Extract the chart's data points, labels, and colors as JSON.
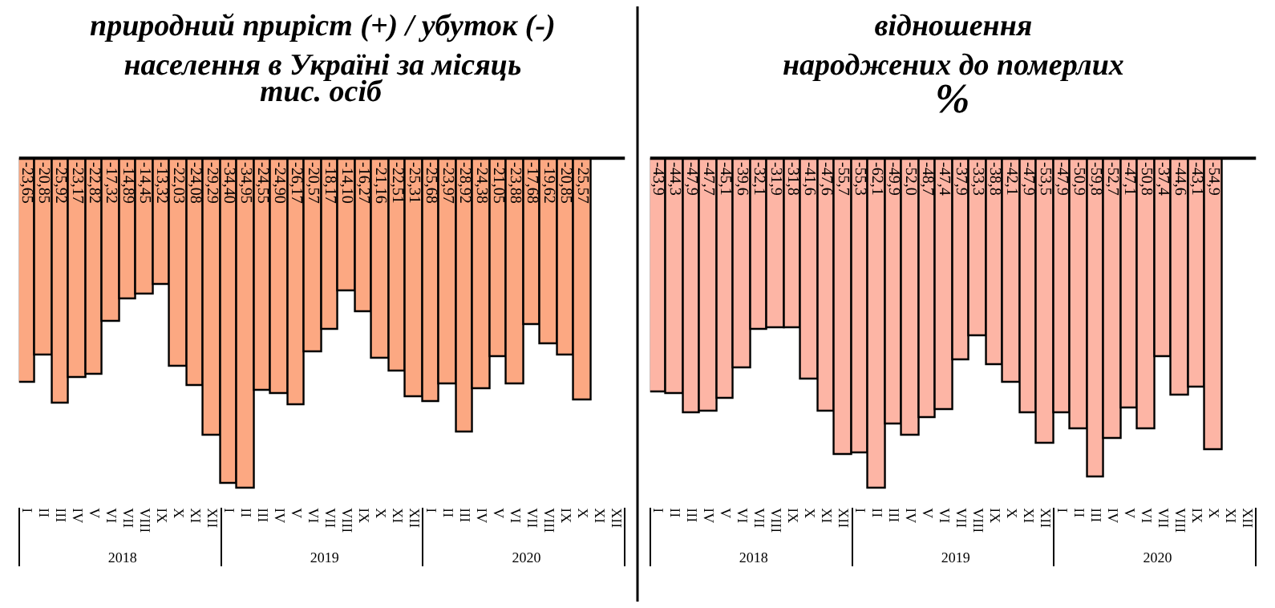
{
  "chart_data": [
    {
      "type": "bar",
      "title": "природний приріст (+) / убуток (-)\nнаселення в Україні за місяць",
      "subtitle": "тис. осіб",
      "categories": [
        "I",
        "II",
        "III",
        "IV",
        "V",
        "VI",
        "VII",
        "VIII",
        "IX",
        "X",
        "XI",
        "XII",
        "I",
        "II",
        "III",
        "IV",
        "V",
        "VI",
        "VII",
        "VIII",
        "IX",
        "X",
        "XI",
        "XII",
        "I",
        "II",
        "III",
        "IV",
        "V",
        "VI",
        "VII",
        "VIII",
        "IX",
        "X",
        "XI",
        "XII"
      ],
      "annotations": [
        "2018",
        "2019",
        "2020"
      ],
      "series": [
        {
          "color": "#fca882",
          "values": [
            -23.65,
            -20.85,
            -25.92,
            -23.17,
            -22.82,
            -17.32,
            -14.89,
            -14.45,
            -13.32,
            -22.03,
            -24.08,
            -29.29,
            -34.4,
            -34.95,
            -24.55,
            -24.9,
            -26.17,
            -20.57,
            -18.17,
            -14.1,
            -16.27,
            -21.16,
            -22.51,
            -25.31,
            -25.68,
            -23.97,
            -28.92,
            -24.38,
            -21.05,
            -23.88,
            -17.68,
            -19.62,
            -20.85,
            -25.57,
            null,
            null
          ],
          "value_labels": [
            "-23,65",
            "-20,85",
            "-25,92",
            "-23,17",
            "-22,82",
            "-17,32",
            "-14,89",
            "-14,45",
            "-13,32",
            "-22,03",
            "-24,08",
            "-29,29",
            "-34,40",
            "-34,95",
            "-24,55",
            "-24,90",
            "-26,17",
            "-20,57",
            "-18,17",
            "-14,10",
            "-16,27",
            "-21,16",
            "-22,51",
            "-25,31",
            "-25,68",
            "-23,97",
            "-28,92",
            "-24,38",
            "-21,05",
            "-23,88",
            "-17,68",
            "-19,62",
            "-20,85",
            "-25,57",
            null,
            null
          ]
        }
      ],
      "tick_labels": "x"
    },
    {
      "type": "bar",
      "title": "відношення\nнароджених до померлих",
      "subtitle": "%",
      "categories": [
        "I",
        "II",
        "III",
        "IV",
        "V",
        "VI",
        "VII",
        "VIII",
        "IX",
        "X",
        "XI",
        "XII",
        "I",
        "II",
        "III",
        "IV",
        "V",
        "VI",
        "VII",
        "VIII",
        "IX",
        "X",
        "XI",
        "XII",
        "I",
        "II",
        "III",
        "IV",
        "V",
        "VI",
        "VII",
        "VIII",
        "IX",
        "X",
        "XI",
        "XII"
      ],
      "annotations": [
        "2018",
        "2019",
        "2020"
      ],
      "series": [
        {
          "color": "#fdb5a5",
          "values": [
            -43.9,
            -44.3,
            -47.9,
            -47.7,
            -45.1,
            -39.6,
            -32.1,
            -31.9,
            -31.8,
            -41.6,
            -47.6,
            -55.7,
            -55.3,
            -62.1,
            -49.9,
            -52.0,
            -48.7,
            -47.4,
            -37.9,
            -33.3,
            -38.8,
            -42.1,
            -47.9,
            -53.5,
            -47.9,
            -50.9,
            -59.8,
            -52.7,
            -47.1,
            -50.8,
            -37.4,
            -44.6,
            -43.1,
            -54.9,
            null,
            null
          ],
          "value_labels": [
            "-43,9",
            "-44,3",
            "-47,9",
            "-47,7",
            "-45,1",
            "-39,6",
            "-32,1",
            "-31,9",
            "-31,8",
            "-41,6",
            "-47,6",
            "-55,7",
            "-55,3",
            "-62,1",
            "-49,9",
            "-52,0",
            "-48,7",
            "-47,4",
            "-37,9",
            "-33,3",
            "-38,8",
            "-42,1",
            "-47,9",
            "-53,5",
            "-47,9",
            "-50,9",
            "-59,8",
            "-52,7",
            "-47,1",
            "-50,8",
            "-37,4",
            "-44,6",
            "-43,1",
            "-54,9",
            null,
            null
          ]
        }
      ],
      "tick_labels": "x"
    }
  ]
}
